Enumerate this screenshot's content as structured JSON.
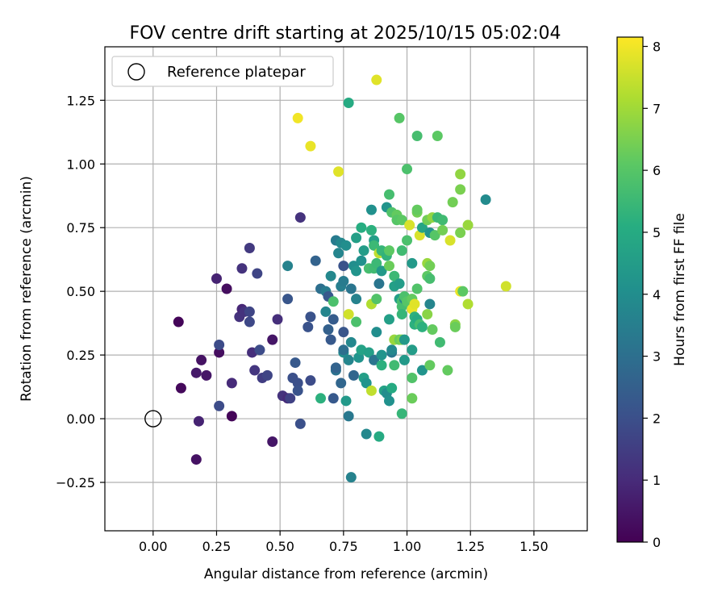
{
  "chart_data": {
    "type": "scatter",
    "title": "FOV centre drift starting at 2025/10/15 05:02:04",
    "xlabel": "Angular distance from reference (arcmin)",
    "ylabel": "Rotation from reference (arcmin)",
    "xlim": [
      -0.19,
      1.71
    ],
    "ylim": [
      -0.44,
      1.46
    ],
    "xticks": [
      0.0,
      0.25,
      0.5,
      0.75,
      1.0,
      1.25,
      1.5
    ],
    "xtick_labels": [
      "0.00",
      "0.25",
      "0.50",
      "0.75",
      "1.00",
      "1.25",
      "1.50"
    ],
    "yticks": [
      -0.25,
      0.0,
      0.25,
      0.5,
      0.75,
      1.0,
      1.25
    ],
    "ytick_labels": [
      "−0.25",
      "0.00",
      "0.25",
      "0.50",
      "0.75",
      "1.00",
      "1.25"
    ],
    "grid": true,
    "legend": {
      "placement": "top-left",
      "entries": [
        {
          "label": "Reference platepar",
          "marker": "open-circle"
        }
      ]
    },
    "reference_point": {
      "x": 0.0,
      "y": 0.0
    },
    "colorbar": {
      "label": "Hours from first FF file",
      "range": [
        0,
        8.15
      ],
      "ticks": [
        0,
        1,
        2,
        3,
        4,
        5,
        6,
        7,
        8
      ],
      "tick_labels": [
        "0",
        "1",
        "2",
        "3",
        "4",
        "5",
        "6",
        "7",
        "8"
      ],
      "colormap": "viridis"
    },
    "points": [
      [
        0.1,
        0.38,
        0.1
      ],
      [
        0.11,
        0.12,
        0.2
      ],
      [
        0.17,
        -0.16,
        0.4
      ],
      [
        0.18,
        -0.01,
        0.8
      ],
      [
        0.17,
        0.18,
        0.6
      ],
      [
        0.19,
        0.23,
        0.4
      ],
      [
        0.21,
        0.17,
        0.5
      ],
      [
        0.25,
        0.55,
        0.8
      ],
      [
        0.26,
        0.26,
        0.3
      ],
      [
        0.26,
        0.29,
        1.9
      ],
      [
        0.26,
        0.05,
        1.9
      ],
      [
        0.29,
        0.51,
        0.3
      ],
      [
        0.31,
        0.01,
        0.1
      ],
      [
        0.31,
        0.14,
        1.0
      ],
      [
        0.34,
        0.4,
        1.2
      ],
      [
        0.35,
        0.43,
        0.9
      ],
      [
        0.35,
        0.59,
        1.2
      ],
      [
        0.36,
        0.42,
        1.2
      ],
      [
        0.38,
        0.67,
        1.4
      ],
      [
        0.38,
        0.42,
        1.7
      ],
      [
        0.38,
        0.38,
        1.8
      ],
      [
        0.39,
        0.26,
        1.1
      ],
      [
        0.4,
        0.19,
        1.3
      ],
      [
        0.41,
        0.57,
        1.7
      ],
      [
        0.42,
        0.27,
        1.9
      ],
      [
        0.43,
        0.16,
        1.5
      ],
      [
        0.45,
        0.17,
        1.7
      ],
      [
        0.47,
        0.31,
        0.5
      ],
      [
        0.47,
        -0.09,
        0.5
      ],
      [
        0.49,
        0.39,
        1.1
      ],
      [
        0.51,
        0.09,
        1.2
      ],
      [
        0.53,
        0.08,
        1.0
      ],
      [
        0.54,
        0.08,
        1.6
      ],
      [
        0.53,
        0.47,
        2.2
      ],
      [
        0.53,
        0.6,
        3.6
      ],
      [
        0.55,
        0.16,
        2.0
      ],
      [
        0.56,
        0.22,
        2.3
      ],
      [
        0.57,
        0.14,
        2.0
      ],
      [
        0.57,
        0.11,
        2.1
      ],
      [
        0.58,
        -0.02,
        2.0
      ],
      [
        0.58,
        0.79,
        1.2
      ],
      [
        0.57,
        1.18,
        8.0
      ],
      [
        0.61,
        0.36,
        2.1
      ],
      [
        0.62,
        0.4,
        2.1
      ],
      [
        0.62,
        0.15,
        1.9
      ],
      [
        0.62,
        1.07,
        7.9
      ],
      [
        0.64,
        0.62,
        2.6
      ],
      [
        0.66,
        0.51,
        3.0
      ],
      [
        0.66,
        0.08,
        5.2
      ],
      [
        0.68,
        0.5,
        3.4
      ],
      [
        0.68,
        0.42,
        3.7
      ],
      [
        0.69,
        0.48,
        2.3
      ],
      [
        0.69,
        0.35,
        2.5
      ],
      [
        0.7,
        0.31,
        2.3
      ],
      [
        0.7,
        0.56,
        3.8
      ],
      [
        0.71,
        0.46,
        5.8
      ],
      [
        0.71,
        0.39,
        2.4
      ],
      [
        0.71,
        0.08,
        2.3
      ],
      [
        0.72,
        0.7,
        3.4
      ],
      [
        0.72,
        0.19,
        3.1
      ],
      [
        0.72,
        0.2,
        2.6
      ],
      [
        0.73,
        0.97,
        7.8
      ],
      [
        0.73,
        0.65,
        3.7
      ],
      [
        0.74,
        0.14,
        2.7
      ],
      [
        0.74,
        0.52,
        3.5
      ],
      [
        0.74,
        0.69,
        3.8
      ],
      [
        0.75,
        0.34,
        2.2
      ],
      [
        0.75,
        0.6,
        2.1
      ],
      [
        0.75,
        0.26,
        4.0
      ],
      [
        0.75,
        0.27,
        3.0
      ],
      [
        0.75,
        0.54,
        3.4
      ],
      [
        0.76,
        0.68,
        4.0
      ],
      [
        0.76,
        0.07,
        4.4
      ],
      [
        0.77,
        0.41,
        7.6
      ],
      [
        0.77,
        0.23,
        3.7
      ],
      [
        0.77,
        1.24,
        5.0
      ],
      [
        0.77,
        0.01,
        3.3
      ],
      [
        0.78,
        0.3,
        3.8
      ],
      [
        0.78,
        0.51,
        3.2
      ],
      [
        0.78,
        -0.23,
        3.6
      ],
      [
        0.79,
        0.17,
        2.7
      ],
      [
        0.79,
        0.6,
        4.0
      ],
      [
        0.8,
        0.58,
        4.2
      ],
      [
        0.8,
        0.71,
        4.6
      ],
      [
        0.8,
        0.47,
        3.6
      ],
      [
        0.8,
        0.38,
        5.8
      ],
      [
        0.81,
        0.24,
        4.2
      ],
      [
        0.82,
        0.27,
        4.7
      ],
      [
        0.82,
        0.75,
        5.1
      ],
      [
        0.82,
        0.62,
        4.1
      ],
      [
        0.83,
        0.66,
        4.5
      ],
      [
        0.83,
        0.16,
        4.6
      ],
      [
        0.84,
        0.14,
        4.2
      ],
      [
        0.84,
        -0.06,
        3.8
      ],
      [
        0.85,
        0.59,
        5.7
      ],
      [
        0.85,
        0.26,
        4.6
      ],
      [
        0.86,
        0.11,
        7.4
      ],
      [
        0.86,
        0.45,
        7.2
      ],
      [
        0.86,
        0.74,
        5.2
      ],
      [
        0.86,
        0.82,
        4.1
      ],
      [
        0.87,
        0.23,
        3.2
      ],
      [
        0.87,
        0.7,
        4.6
      ],
      [
        0.87,
        0.68,
        5.5
      ],
      [
        0.87,
        0.59,
        5.6
      ],
      [
        0.88,
        0.47,
        5.9
      ],
      [
        0.88,
        0.34,
        4.0
      ],
      [
        0.88,
        0.61,
        5.5
      ],
      [
        0.88,
        1.33,
        7.8
      ],
      [
        0.89,
        -0.07,
        5.0
      ],
      [
        0.89,
        0.65,
        7.4
      ],
      [
        0.89,
        0.53,
        3.2
      ],
      [
        0.9,
        0.21,
        5.2
      ],
      [
        0.9,
        0.25,
        4.2
      ],
      [
        0.9,
        0.66,
        5.4
      ],
      [
        0.9,
        0.58,
        4.4
      ],
      [
        0.91,
        0.11,
        4.7
      ],
      [
        0.92,
        0.83,
        4.2
      ],
      [
        0.92,
        0.1,
        4.0
      ],
      [
        0.92,
        0.64,
        5.3
      ],
      [
        0.93,
        0.88,
        5.7
      ],
      [
        0.93,
        0.07,
        4.1
      ],
      [
        0.93,
        0.6,
        6.3
      ],
      [
        0.93,
        0.39,
        4.6
      ],
      [
        0.93,
        0.66,
        6.1
      ],
      [
        0.94,
        0.12,
        5.0
      ],
      [
        0.94,
        0.26,
        3.3
      ],
      [
        0.94,
        0.81,
        5.9
      ],
      [
        0.94,
        0.27,
        3.8
      ],
      [
        0.95,
        0.52,
        4.6
      ],
      [
        0.95,
        0.56,
        5.5
      ],
      [
        0.95,
        0.21,
        5.6
      ],
      [
        0.95,
        0.31,
        6.9
      ],
      [
        0.96,
        0.8,
        6.2
      ],
      [
        0.96,
        0.78,
        6.0
      ],
      [
        0.97,
        1.18,
        6.0
      ],
      [
        0.97,
        0.47,
        4.6
      ],
      [
        0.97,
        0.31,
        6.3
      ],
      [
        0.97,
        0.53,
        4.5
      ],
      [
        0.98,
        0.02,
        5.4
      ],
      [
        0.98,
        0.78,
        6.1
      ],
      [
        0.98,
        0.66,
        5.6
      ],
      [
        0.98,
        0.31,
        6.5
      ],
      [
        0.98,
        0.46,
        5.7
      ],
      [
        0.98,
        0.44,
        5.7
      ],
      [
        0.98,
        0.41,
        5.4
      ],
      [
        0.99,
        0.23,
        4.4
      ],
      [
        0.99,
        0.47,
        3.8
      ],
      [
        0.99,
        0.31,
        4.4
      ],
      [
        0.99,
        0.48,
        5.8
      ],
      [
        1.0,
        0.98,
        5.8
      ],
      [
        1.0,
        0.46,
        6.0
      ],
      [
        1.0,
        0.7,
        5.8
      ],
      [
        1.01,
        0.76,
        7.7
      ],
      [
        1.02,
        0.43,
        7.9
      ],
      [
        1.02,
        0.47,
        6.2
      ],
      [
        1.02,
        0.61,
        4.4
      ],
      [
        1.02,
        0.16,
        5.9
      ],
      [
        1.02,
        0.08,
        6.3
      ],
      [
        1.02,
        0.27,
        4.5
      ],
      [
        1.03,
        0.37,
        5.2
      ],
      [
        1.03,
        0.45,
        7.8
      ],
      [
        1.03,
        0.4,
        5.2
      ],
      [
        1.04,
        1.11,
        5.7
      ],
      [
        1.04,
        0.81,
        6.4
      ],
      [
        1.04,
        0.82,
        6.2
      ],
      [
        1.04,
        0.51,
        5.9
      ],
      [
        1.04,
        0.39,
        5.0
      ],
      [
        1.05,
        0.72,
        7.7
      ],
      [
        1.05,
        0.37,
        5.7
      ],
      [
        1.06,
        0.75,
        4.8
      ],
      [
        1.06,
        0.19,
        4.2
      ],
      [
        1.06,
        0.36,
        5.2
      ],
      [
        1.08,
        0.78,
        6.4
      ],
      [
        1.08,
        0.41,
        6.7
      ],
      [
        1.08,
        0.61,
        6.9
      ],
      [
        1.08,
        0.56,
        6.1
      ],
      [
        1.09,
        0.73,
        4.2
      ],
      [
        1.09,
        0.6,
        6.4
      ],
      [
        1.09,
        0.55,
        5.7
      ],
      [
        1.09,
        0.21,
        6.2
      ],
      [
        1.09,
        0.45,
        3.7
      ],
      [
        1.1,
        0.79,
        6.8
      ],
      [
        1.1,
        0.35,
        6.2
      ],
      [
        1.11,
        0.72,
        6.0
      ],
      [
        1.12,
        1.11,
        6.1
      ],
      [
        1.12,
        0.79,
        5.5
      ],
      [
        1.13,
        0.3,
        5.6
      ],
      [
        1.14,
        0.78,
        5.6
      ],
      [
        1.14,
        0.74,
        6.4
      ],
      [
        1.16,
        0.19,
        6.2
      ],
      [
        1.17,
        0.7,
        7.7
      ],
      [
        1.18,
        0.85,
        6.4
      ],
      [
        1.19,
        0.37,
        6.7
      ],
      [
        1.19,
        0.36,
        6.3
      ],
      [
        1.21,
        0.96,
        6.8
      ],
      [
        1.21,
        0.9,
        6.5
      ],
      [
        1.21,
        0.73,
        6.5
      ],
      [
        1.21,
        0.5,
        7.9
      ],
      [
        1.22,
        0.5,
        6.1
      ],
      [
        1.24,
        0.76,
        6.9
      ],
      [
        1.24,
        0.45,
        7.2
      ],
      [
        1.31,
        0.86,
        3.9
      ],
      [
        1.39,
        0.52,
        7.6
      ]
    ]
  }
}
